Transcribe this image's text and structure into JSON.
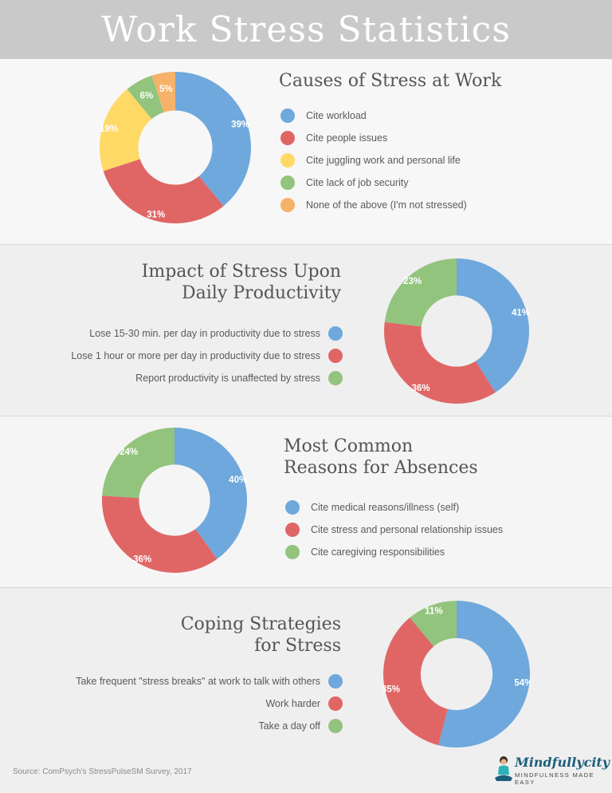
{
  "header": {
    "title": "Work Stress Statistics"
  },
  "chart_data": [
    {
      "type": "pie",
      "title": "Causes of Stress at Work",
      "title_lines": [
        "Causes of Stress at Work"
      ],
      "categories": [
        "Cite workload",
        "Cite people issues",
        "Cite juggling work and personal life",
        "Cite lack of job security",
        "None of the above (I'm not stressed)"
      ],
      "values": [
        39,
        31,
        19,
        6,
        5
      ],
      "labels": [
        "39%",
        "31%",
        "19%",
        "6%",
        "5%"
      ],
      "colors": [
        "#6fa8dc",
        "#e06666",
        "#ffd966",
        "#93c47d",
        "#f6b26b"
      ],
      "legend_position": "right"
    },
    {
      "type": "pie",
      "title": "Impact of Stress Upon Daily Productivity",
      "title_lines": [
        "Impact of Stress Upon",
        "Daily Productivity"
      ],
      "categories": [
        "Lose 15-30 min. per day in productivity due to stress",
        "Lose 1 hour or more per day in productivity due to stress",
        "Report productivity is unaffected by stress"
      ],
      "values": [
        41,
        36,
        23
      ],
      "labels": [
        "41%",
        "36%",
        "23%"
      ],
      "colors": [
        "#6fa8dc",
        "#e06666",
        "#93c47d"
      ],
      "legend_position": "left"
    },
    {
      "type": "pie",
      "title": "Most Common Reasons for Absences",
      "title_lines": [
        "Most Common",
        "Reasons for Absences"
      ],
      "categories": [
        "Cite medical reasons/illness (self)",
        "Cite stress and personal relationship issues",
        "Cite caregiving responsibilities"
      ],
      "values": [
        40,
        36,
        24
      ],
      "labels": [
        "40%",
        "36%",
        "24%"
      ],
      "colors": [
        "#6fa8dc",
        "#e06666",
        "#93c47d"
      ],
      "legend_position": "right"
    },
    {
      "type": "pie",
      "title": "Coping Strategies for Stress",
      "title_lines": [
        "Coping Strategies",
        "for Stress"
      ],
      "categories": [
        "Take frequent \"stress breaks\" at work to talk with others",
        "Work harder",
        "Take a day off"
      ],
      "values": [
        54,
        35,
        11
      ],
      "labels": [
        "54%",
        "35%",
        "11%"
      ],
      "colors": [
        "#6fa8dc",
        "#e06666",
        "#93c47d"
      ],
      "legend_position": "left"
    }
  ],
  "footer": {
    "source": "Source: ComPsych's StressPulseSM Survey, 2017",
    "logo_name": "Mindfullycity",
    "logo_tagline": "MINDFULNESS MADE EASY"
  }
}
